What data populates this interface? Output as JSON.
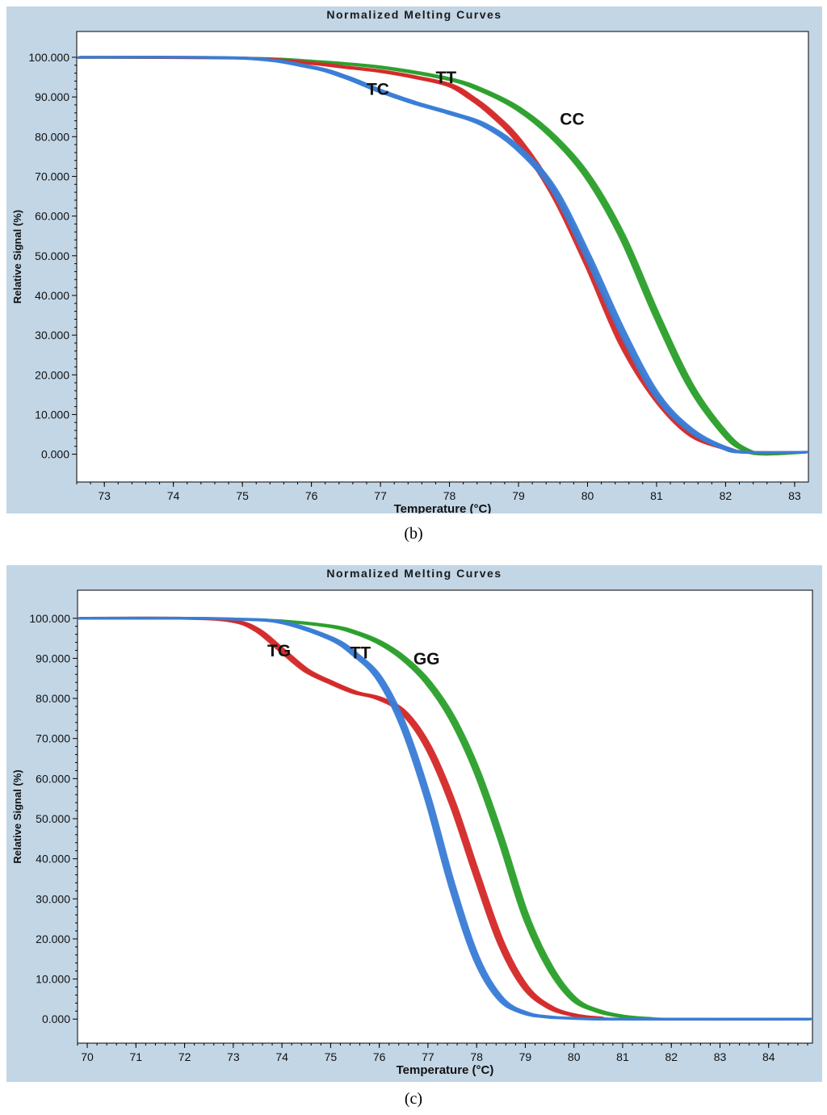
{
  "chart_data": [
    {
      "id": "b",
      "type": "line",
      "title": "Normalized Melting Curves",
      "xlabel": "Temperature (°C)",
      "ylabel": "Relative Signal (%)",
      "xlim": [
        72.6,
        83.2
      ],
      "ylim": [
        -7,
        106.5
      ],
      "xticks": [
        73,
        74,
        75,
        76,
        77,
        78,
        79,
        80,
        81,
        82,
        83
      ],
      "yticks": [
        0,
        10,
        20,
        30,
        40,
        50,
        60,
        70,
        80,
        90,
        100
      ],
      "ytick_labels": [
        "0.000",
        "10.000",
        "20.000",
        "30.000",
        "40.000",
        "50.000",
        "60.000",
        "70.000",
        "80.000",
        "90.000",
        "100.000"
      ],
      "series": [
        {
          "name": "CC",
          "color": "#2ca02c",
          "x": [
            72.6,
            75,
            76,
            77,
            78,
            78.5,
            79,
            79.5,
            80,
            80.5,
            81,
            81.5,
            82,
            82.3,
            82.6,
            83.2
          ],
          "y": [
            100,
            99.8,
            99,
            97.5,
            94.5,
            91.5,
            87,
            80,
            70,
            55,
            35,
            17,
            5,
            1,
            0,
            0.5
          ]
        },
        {
          "name": "TT",
          "color": "#d42a2a",
          "x": [
            72.6,
            75,
            76,
            76.5,
            77,
            77.5,
            78,
            78.3,
            78.6,
            79,
            79.5,
            80,
            80.5,
            81,
            81.5,
            82,
            82.3,
            83.2
          ],
          "y": [
            100,
            99.8,
            98.5,
            97.5,
            96.5,
            95,
            93,
            90,
            86,
            79,
            66,
            48,
            28,
            14,
            5,
            1.5,
            0.5,
            0.5
          ]
        },
        {
          "name": "TC",
          "color": "#3a7dd6",
          "x": [
            72.6,
            75,
            76,
            76.5,
            77,
            77.5,
            78,
            78.5,
            79,
            79.5,
            80,
            80.5,
            81,
            81.5,
            82,
            82.3,
            83.2
          ],
          "y": [
            100,
            99.8,
            97.5,
            95,
            91.5,
            88.5,
            86,
            83,
            77,
            67,
            50,
            31,
            15,
            6,
            1.5,
            0.5,
            0.5
          ]
        }
      ],
      "annotations": [
        {
          "text": "TC",
          "x": 76.8,
          "y": 90.5
        },
        {
          "text": "TT",
          "x": 77.8,
          "y": 93.5
        },
        {
          "text": "CC",
          "x": 79.6,
          "y": 83
        }
      ],
      "caption": "(b)"
    },
    {
      "id": "c",
      "type": "line",
      "title": "Normalized Melting Curves",
      "xlabel": "Temperature (°C)",
      "ylabel": "Relative Signal (%)",
      "xlim": [
        69.8,
        84.9
      ],
      "ylim": [
        -6,
        107
      ],
      "xticks": [
        70,
        71,
        72,
        73,
        74,
        75,
        76,
        77,
        78,
        79,
        80,
        81,
        82,
        83,
        84
      ],
      "yticks": [
        0,
        10,
        20,
        30,
        40,
        50,
        60,
        70,
        80,
        90,
        100
      ],
      "ytick_labels": [
        "0.000",
        "10.000",
        "20.000",
        "30.000",
        "40.000",
        "50.000",
        "60.000",
        "70.000",
        "80.000",
        "90.000",
        "100.000"
      ],
      "series": [
        {
          "name": "GG",
          "color": "#2ca02c",
          "x": [
            69.8,
            72,
            73,
            74,
            75,
            75.5,
            76,
            76.5,
            77,
            77.5,
            78,
            78.5,
            79,
            79.5,
            80,
            80.5,
            81,
            81.5,
            82,
            84.9
          ],
          "y": [
            100,
            100,
            99.8,
            99.3,
            98,
            96.5,
            94,
            90,
            84,
            75,
            62,
            45,
            26,
            13,
            5,
            2,
            0.7,
            0.2,
            0,
            0
          ]
        },
        {
          "name": "TG",
          "color": "#d42a2a",
          "x": [
            69.8,
            72,
            73,
            73.5,
            74,
            74.5,
            75,
            75.5,
            76,
            76.5,
            77,
            77.5,
            78,
            78.5,
            79,
            79.5,
            80,
            80.5,
            81,
            84.9
          ],
          "y": [
            100,
            100,
            99.3,
            97,
            92,
            87,
            84,
            81.5,
            80,
            76.5,
            68,
            54,
            36,
            19,
            8,
            3,
            1,
            0.3,
            0,
            0
          ]
        },
        {
          "name": "TT",
          "color": "#3a7dd6",
          "x": [
            69.8,
            72,
            73,
            74,
            75,
            75.5,
            76,
            76.5,
            77,
            77.5,
            78,
            78.5,
            79,
            79.5,
            80,
            80.5,
            81,
            84.9
          ],
          "y": [
            100,
            100,
            99.8,
            99,
            95,
            91,
            85,
            73,
            55,
            33,
            15,
            5,
            1.5,
            0.5,
            0.2,
            0,
            0,
            0
          ]
        }
      ],
      "annotations": [
        {
          "text": "TG",
          "x": 73.7,
          "y": 90.5
        },
        {
          "text": "TT",
          "x": 75.4,
          "y": 90
        },
        {
          "text": "GG",
          "x": 76.7,
          "y": 88.5
        }
      ],
      "caption": "(c)"
    }
  ]
}
